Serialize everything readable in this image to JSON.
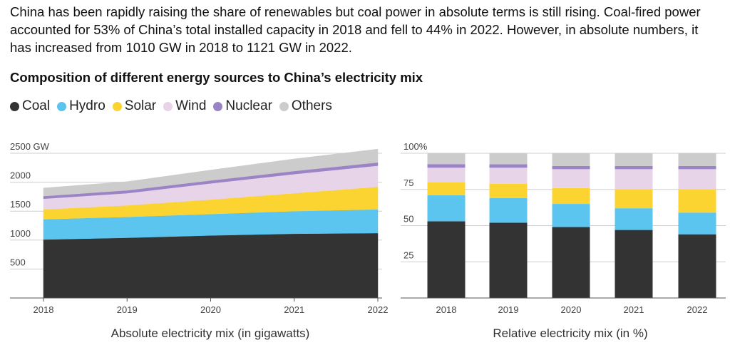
{
  "intro_text": "China has been rapidly raising the share of renewables but coal power in absolute terms is still rising. Coal-fired power accounted for 53% of China’s total installed capacity in 2018 and fell to 44% in 2022. However, in absolute numbers, it has increased from 1010 GW in 2018 to 1121 GW in 2022.",
  "title": "Composition of different energy sources to China’s electricity mix",
  "legend": [
    {
      "label": "Coal",
      "color": "#333333"
    },
    {
      "label": "Hydro",
      "color": "#5bc4ef"
    },
    {
      "label": "Solar",
      "color": "#fcd432"
    },
    {
      "label": "Wind",
      "color": "#e8d4e8"
    },
    {
      "label": "Nuclear",
      "color": "#9b84c6"
    },
    {
      "label": "Others",
      "color": "#cccccc"
    }
  ],
  "chart_data": [
    {
      "type": "area",
      "stacked": true,
      "caption": "Absolute electricity mix (in gigawatts)",
      "x": [
        "2018",
        "2019",
        "2020",
        "2021",
        "2022"
      ],
      "ylim": [
        0,
        2500
      ],
      "yticks": [
        500,
        1000,
        1500,
        2000,
        2500
      ],
      "ytick_labels": [
        "500",
        "1000",
        "1500",
        "2000",
        "2500 GW"
      ],
      "series": [
        {
          "name": "Coal",
          "color": "#333333",
          "values": [
            1010,
            1040,
            1080,
            1110,
            1121
          ]
        },
        {
          "name": "Hydro",
          "color": "#5bc4ef",
          "values": [
            350,
            360,
            370,
            390,
            410
          ]
        },
        {
          "name": "Solar",
          "color": "#fcd432",
          "values": [
            170,
            200,
            250,
            310,
            390
          ]
        },
        {
          "name": "Wind",
          "color": "#e8d4e8",
          "values": [
            185,
            210,
            280,
            330,
            365
          ]
        },
        {
          "name": "Nuclear",
          "color": "#9b84c6",
          "values": [
            45,
            50,
            50,
            53,
            56
          ]
        },
        {
          "name": "Others",
          "color": "#cccccc",
          "values": [
            140,
            150,
            180,
            210,
            230
          ]
        }
      ]
    },
    {
      "type": "bar",
      "stacked": true,
      "caption": "Relative electricity mix (in %)",
      "categories": [
        "2018",
        "2019",
        "2020",
        "2021",
        "2022"
      ],
      "ylim": [
        0,
        100
      ],
      "yticks": [
        25,
        50,
        75,
        100
      ],
      "ytick_labels": [
        "25",
        "50",
        "75",
        "100%"
      ],
      "series": [
        {
          "name": "Coal",
          "color": "#333333",
          "values": [
            53,
            52,
            49,
            47,
            44
          ]
        },
        {
          "name": "Hydro",
          "color": "#5bc4ef",
          "values": [
            18,
            17,
            16,
            15,
            15
          ]
        },
        {
          "name": "Solar",
          "color": "#fcd432",
          "values": [
            9,
            10,
            11,
            13,
            16
          ]
        },
        {
          "name": "Wind",
          "color": "#e8d4e8",
          "values": [
            10,
            11,
            13,
            14,
            14
          ]
        },
        {
          "name": "Nuclear",
          "color": "#9b84c6",
          "values": [
            2.5,
            2.4,
            2.2,
            2.2,
            2.2
          ]
        },
        {
          "name": "Others",
          "color": "#cccccc",
          "values": [
            7.5,
            7.6,
            8.8,
            8.8,
            8.8
          ]
        }
      ]
    }
  ]
}
